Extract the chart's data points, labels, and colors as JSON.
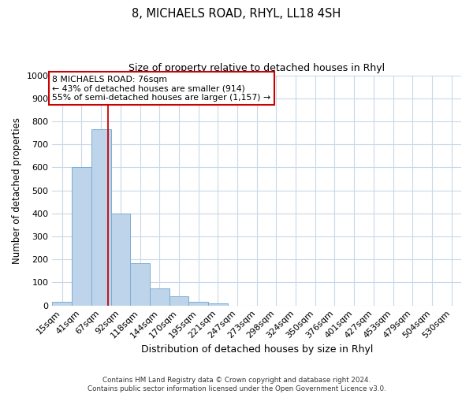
{
  "title": "8, MICHAELS ROAD, RHYL, LL18 4SH",
  "subtitle": "Size of property relative to detached houses in Rhyl",
  "xlabel": "Distribution of detached houses by size in Rhyl",
  "ylabel": "Number of detached properties",
  "bar_labels": [
    "15sqm",
    "41sqm",
    "67sqm",
    "92sqm",
    "118sqm",
    "144sqm",
    "170sqm",
    "195sqm",
    "221sqm",
    "247sqm",
    "273sqm",
    "298sqm",
    "324sqm",
    "350sqm",
    "376sqm",
    "401sqm",
    "427sqm",
    "453sqm",
    "479sqm",
    "504sqm",
    "530sqm"
  ],
  "bar_values": [
    15,
    600,
    765,
    400,
    185,
    75,
    40,
    15,
    10,
    0,
    0,
    0,
    0,
    0,
    0,
    0,
    0,
    0,
    0,
    0,
    0
  ],
  "bar_color": "#bed4eb",
  "bar_edge_color": "#7aadd4",
  "vline_x": 2.35,
  "vline_color": "#cc0000",
  "ylim": [
    0,
    1000
  ],
  "yticks": [
    0,
    100,
    200,
    300,
    400,
    500,
    600,
    700,
    800,
    900,
    1000
  ],
  "annotation_text": "8 MICHAELS ROAD: 76sqm\n← 43% of detached houses are smaller (914)\n55% of semi-detached houses are larger (1,157) →",
  "annotation_box_color": "#ffffff",
  "annotation_border_color": "#cc0000",
  "footer_line1": "Contains HM Land Registry data © Crown copyright and database right 2024.",
  "footer_line2": "Contains public sector information licensed under the Open Government Licence v3.0.",
  "background_color": "#ffffff",
  "grid_color": "#c8d8e8"
}
